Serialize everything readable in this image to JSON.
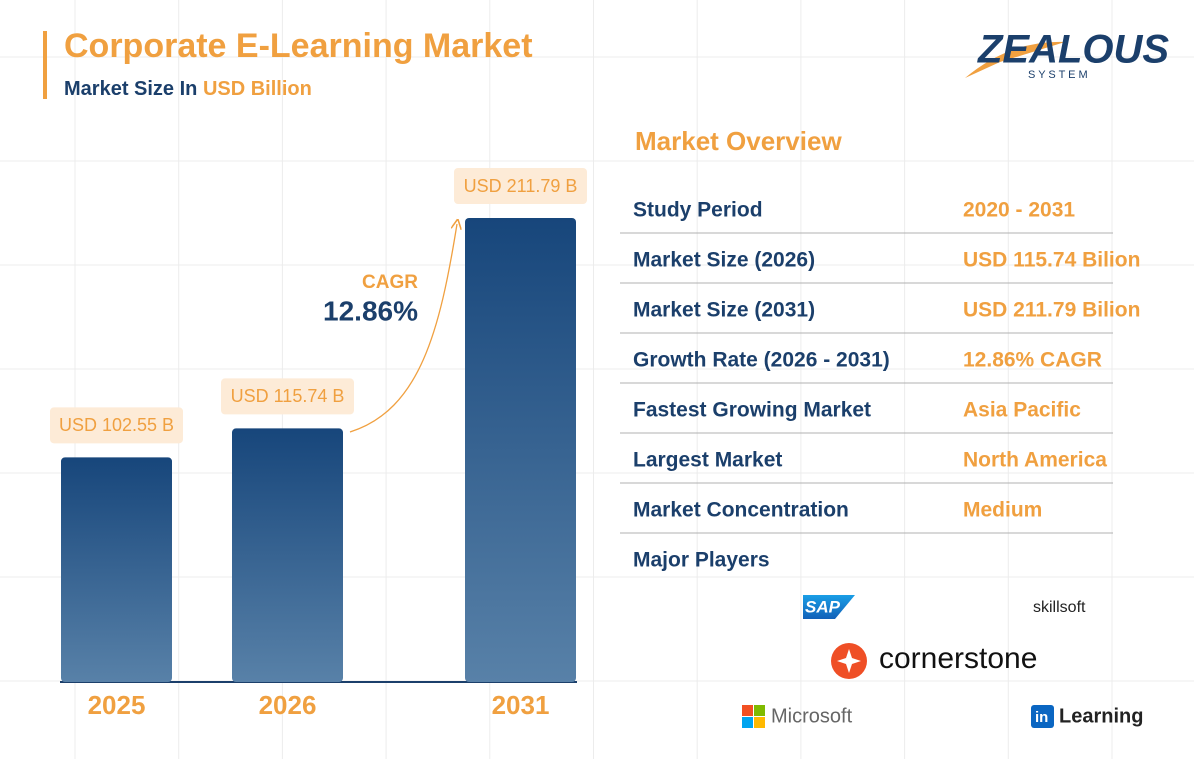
{
  "header": {
    "title": "Corporate E-Learning Market",
    "subtitle": "Market Size In",
    "subtitle_unit": "USD Billion"
  },
  "logo": {
    "name": "ZEALOUS",
    "tagline": "S Y S T E M"
  },
  "chart_data": {
    "type": "bar",
    "categories": [
      "2025",
      "2026",
      "2031"
    ],
    "values": [
      102.55,
      115.74,
      211.79
    ],
    "value_labels": [
      "USD 102.55 B",
      "USD 115.74 B",
      "USD 211.79 B"
    ],
    "color": "#1a4a7e",
    "annotation": {
      "label": "CAGR",
      "value": "12.86%"
    }
  },
  "overview": {
    "title": "Market Overview",
    "rows": [
      [
        "Study Period",
        "2020 - 2031"
      ],
      [
        "Market Size (2026)",
        "USD 115.74 Bilion"
      ],
      [
        "Market Size (2031)",
        "USD 211.79 Bilion"
      ],
      [
        "Growth Rate (2026 - 2031)",
        "12.86% CAGR"
      ],
      [
        "Fastest Growing Market",
        "Asia Pacific"
      ],
      [
        "Largest Market",
        "North America"
      ],
      [
        "Market Concentration",
        "Medium"
      ],
      [
        "Major Players"
      ]
    ],
    "players": [
      "SAP",
      "skillsoft",
      "cornerstone",
      "Microsoft",
      "in",
      "Learning"
    ]
  }
}
